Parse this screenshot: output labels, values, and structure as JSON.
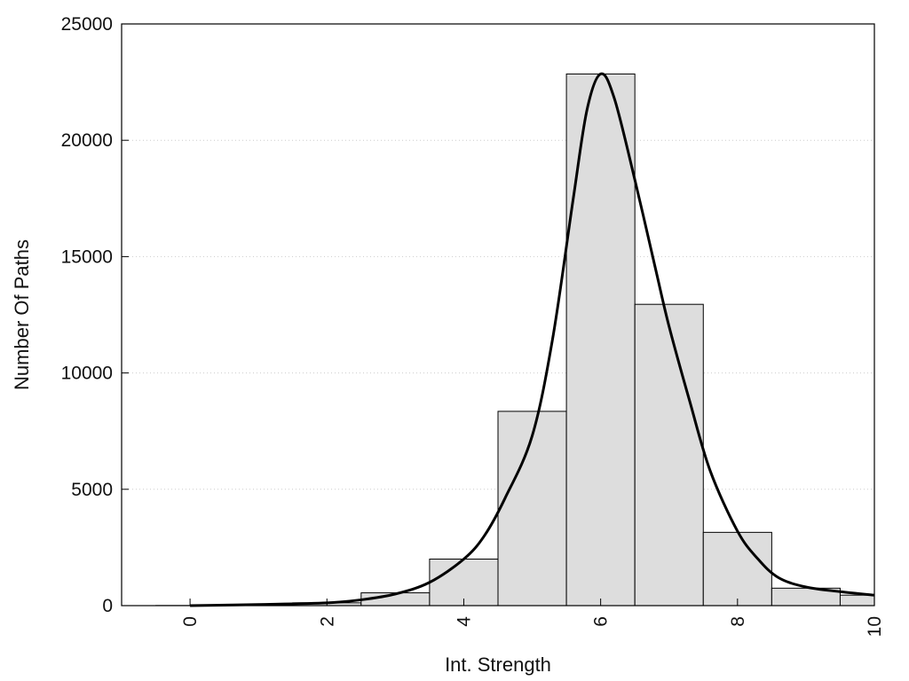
{
  "chart_data": {
    "type": "bar",
    "title": "",
    "xlabel": "Int. Strength",
    "ylabel": "Number Of Paths",
    "xlim": [
      -1,
      10
    ],
    "ylim": [
      0,
      25000
    ],
    "x_ticks": [
      0,
      2,
      4,
      6,
      8,
      10
    ],
    "y_ticks": [
      0,
      5000,
      10000,
      15000,
      20000,
      25000
    ],
    "grid": "horizontal dotted",
    "legend": "none",
    "bar_width": 1,
    "bars": [
      {
        "x": 0,
        "value": 5
      },
      {
        "x": 1,
        "value": 40
      },
      {
        "x": 2,
        "value": 120
      },
      {
        "x": 3,
        "value": 550
      },
      {
        "x": 4,
        "value": 2000
      },
      {
        "x": 5,
        "value": 8350
      },
      {
        "x": 6,
        "value": 22850
      },
      {
        "x": 7,
        "value": 12950
      },
      {
        "x": 8,
        "value": 3150
      },
      {
        "x": 9,
        "value": 750
      },
      {
        "x": 10,
        "value": 450
      }
    ],
    "fit_curve": {
      "x": [
        0,
        1,
        2,
        2.5,
        3,
        3.5,
        4,
        4.3,
        4.6,
        5,
        5.3,
        5.6,
        5.8,
        6,
        6.2,
        6.5,
        6.8,
        7,
        7.3,
        7.6,
        8,
        8.3,
        8.6,
        9,
        9.5,
        10
      ],
      "y": [
        0,
        50,
        120,
        250,
        500,
        1000,
        2000,
        3000,
        4600,
        7300,
        11500,
        17500,
        21300,
        22850,
        21800,
        18300,
        14500,
        12000,
        8800,
        5800,
        3200,
        2000,
        1200,
        800,
        600,
        450
      ]
    },
    "colors": {
      "bar_fill": "#dddddd",
      "bar_stroke": "#000000",
      "curve": "#000000",
      "grid": "#cccccc"
    }
  }
}
